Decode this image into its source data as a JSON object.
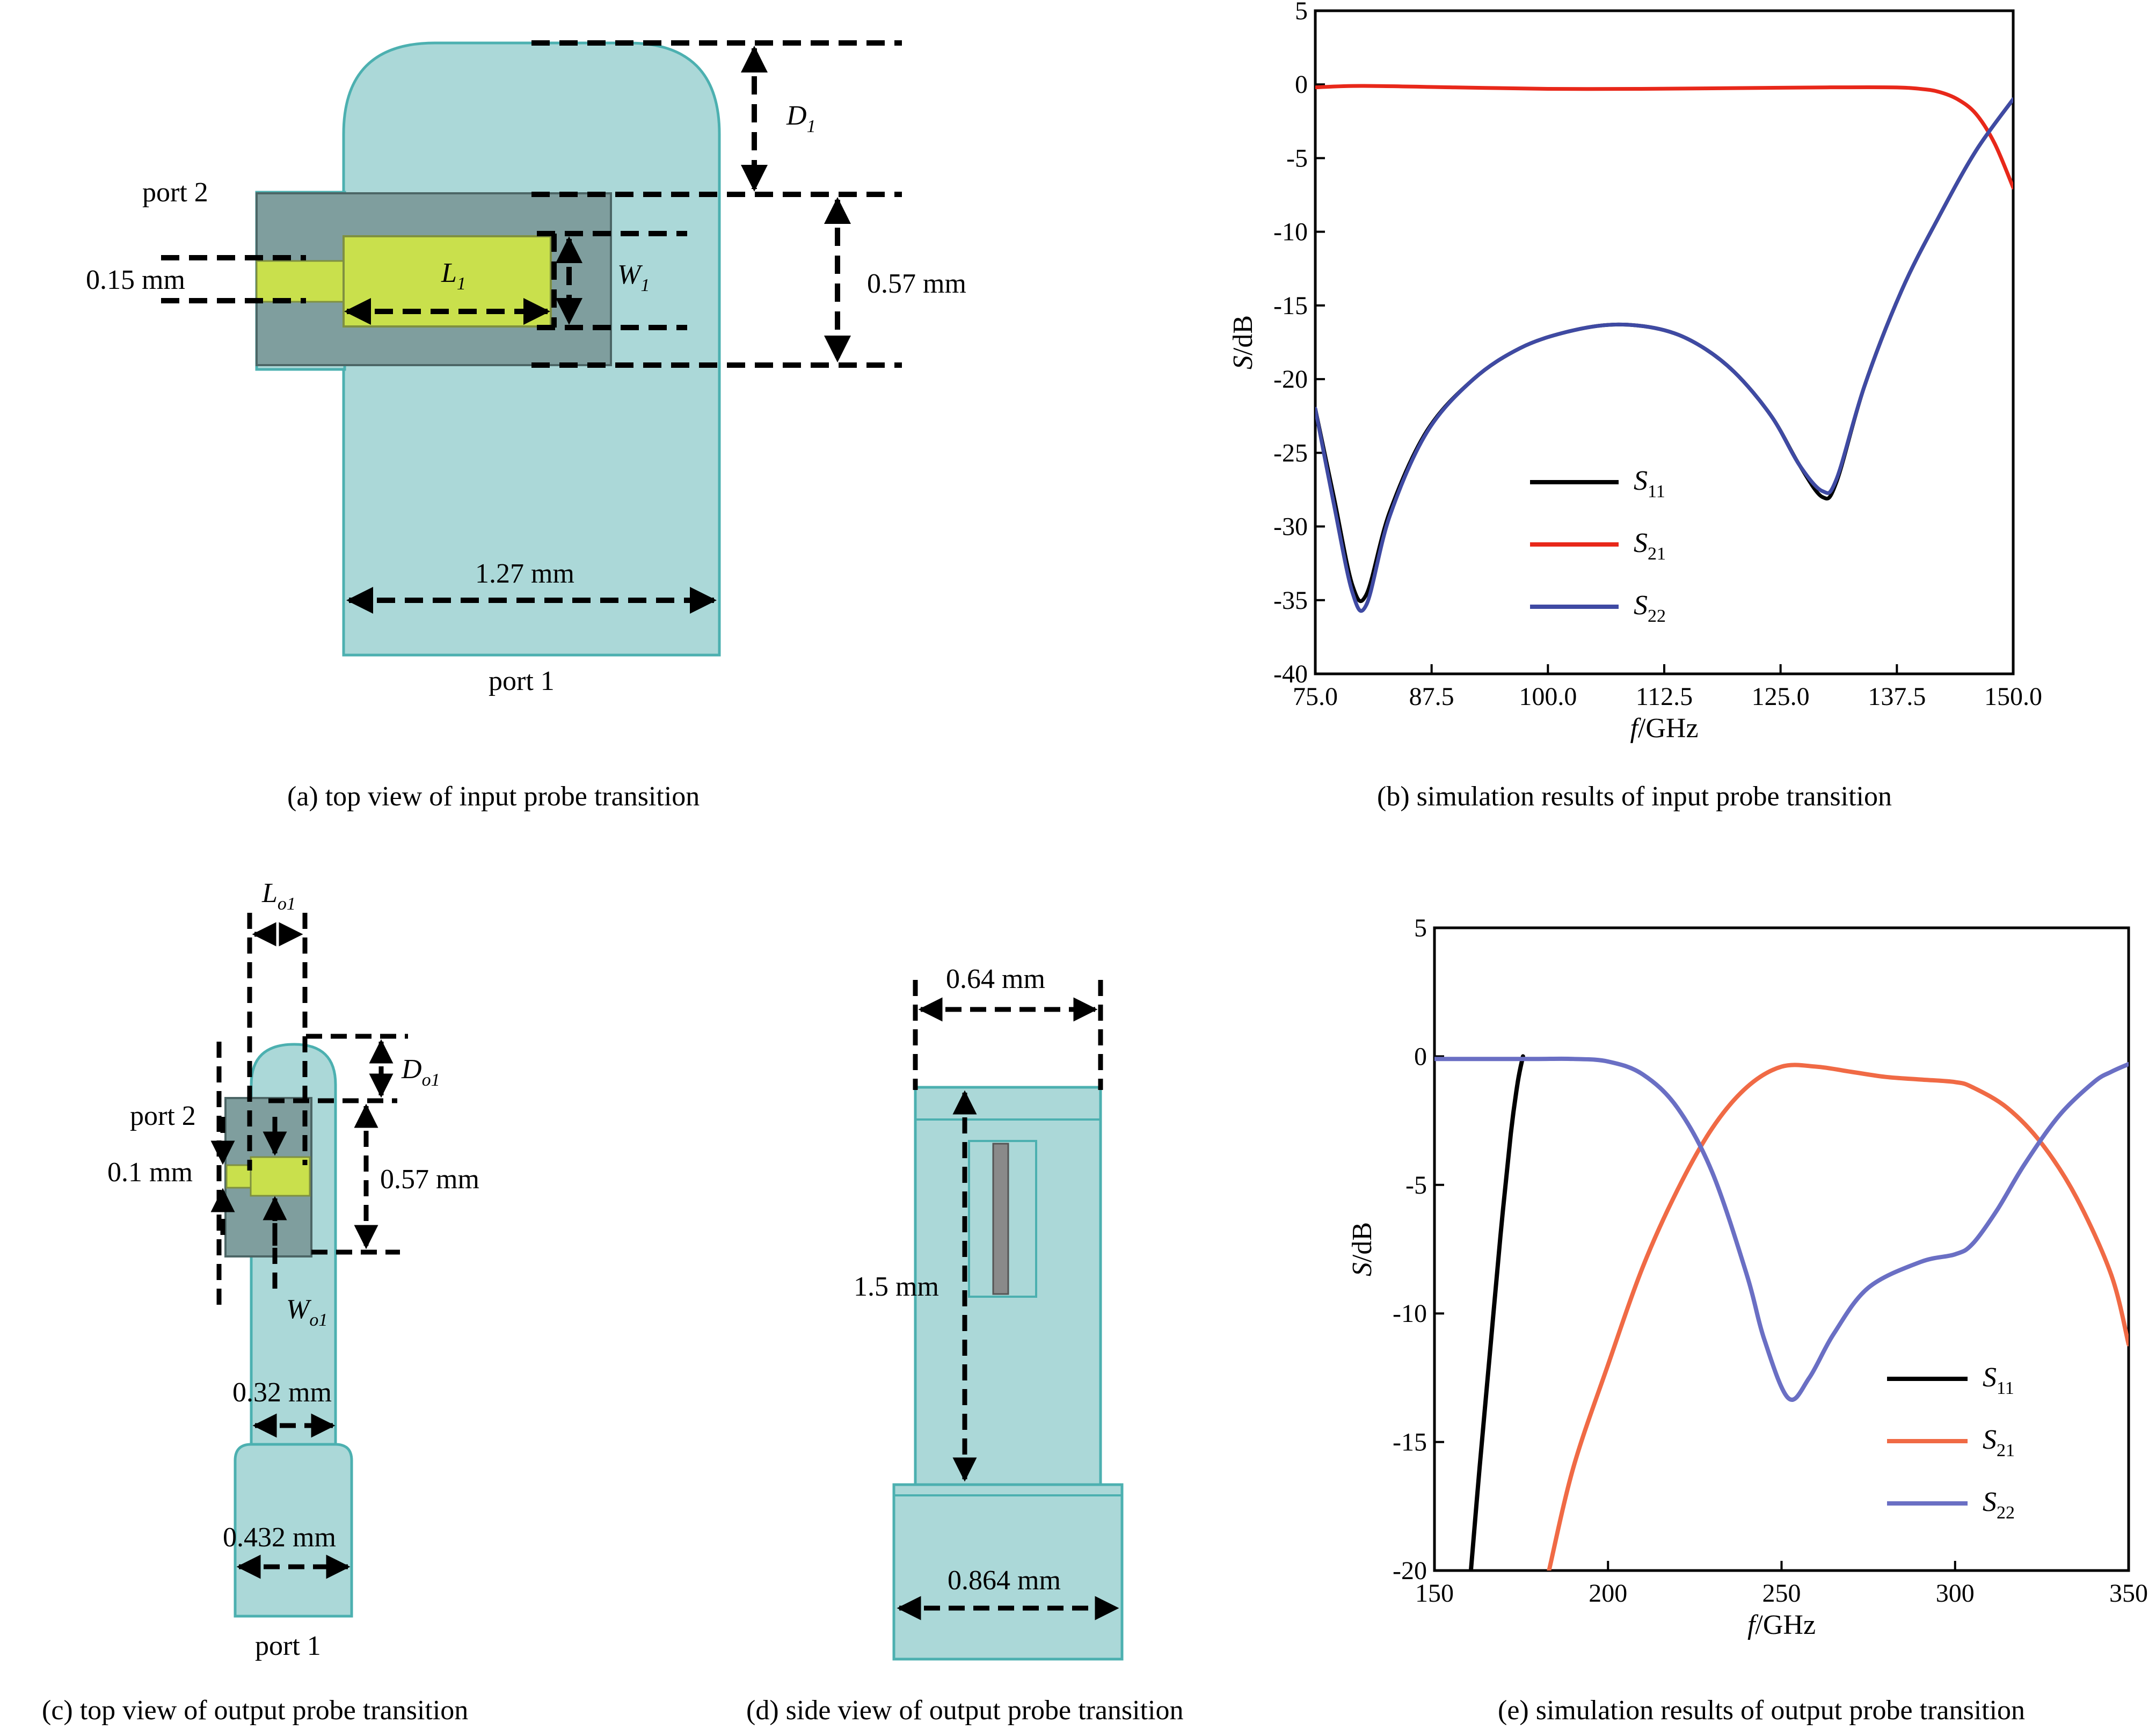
{
  "panels": {
    "a": {
      "caption": "(a)  top view of input probe transition",
      "port2": "port 2",
      "port1": "port 1",
      "dim_probe": "0.15 mm",
      "dim_height": "0.57 mm",
      "dim_width": "1.27 mm",
      "sym_D": "D",
      "sym_D_sub": "1",
      "sym_L": "L",
      "sym_L_sub": "1",
      "sym_W": "W",
      "sym_W_sub": "1"
    },
    "b": {
      "caption": "(b)  simulation results of input probe transition"
    },
    "c": {
      "caption": "(c) top view of output probe transition",
      "port2": "port 2",
      "port1": "port 1",
      "dim_probe": "0.1 mm",
      "dim_height": "0.57 mm",
      "dim_w1": "0.32 mm",
      "dim_w2": "0.432 mm",
      "sym_L": "L",
      "sym_L_sub": "o1",
      "sym_D": "D",
      "sym_D_sub": "o1",
      "sym_W": "W",
      "sym_W_sub": "o1"
    },
    "d": {
      "caption": "(d) side view of output probe transition",
      "dim_top": "0.64 mm",
      "dim_len": "1.5 mm",
      "dim_bottom": "0.864 mm"
    },
    "e": {
      "caption": "(e) simulation results of output probe transition"
    }
  },
  "colors": {
    "dielectric": "#abd8d8",
    "dielectric_edge": "#4cb0b0",
    "substrate": "#7f9e9e",
    "probe": "#c9e04c",
    "s11": "#000000",
    "s21_b": "#e8281a",
    "s21_e": "#f06a45",
    "s22": "#3f4aa3",
    "s22_e": "#6a6fc4"
  },
  "chart_data": [
    {
      "type": "line",
      "xlabel": "f/GHz",
      "ylabel": "S/dB",
      "xlim": [
        75.0,
        150.0
      ],
      "ylim": [
        -40,
        5
      ],
      "xticks": [
        "75.0",
        "87.5",
        "100.0",
        "112.5",
        "125.0",
        "137.5",
        "150.0"
      ],
      "yticks": [
        "5",
        "0",
        "-5",
        "-10",
        "-15",
        "-20",
        "-25",
        "-30",
        "-35",
        "-40"
      ],
      "legend_position": "lower-left",
      "series": [
        {
          "name": "S11",
          "label": "S",
          "label_sub": "11",
          "color": "#000000",
          "x": [
            75,
            77,
            79,
            80.5,
            83,
            87,
            92,
            97,
            102,
            107,
            112,
            116,
            120,
            124,
            127,
            129.5,
            131,
            134,
            138,
            142,
            146,
            150
          ],
          "y": [
            -22,
            -28,
            -34,
            -34.6,
            -29,
            -23.5,
            -20,
            -17.9,
            -16.8,
            -16.3,
            -16.6,
            -17.6,
            -19.5,
            -22.5,
            -25.8,
            -28,
            -27,
            -20.5,
            -14,
            -9,
            -4.5,
            -1
          ]
        },
        {
          "name": "S21",
          "label": "S",
          "label_sub": "21",
          "color": "#e8281a",
          "x": [
            75,
            80,
            90,
            100,
            110,
            120,
            130,
            137,
            140,
            142,
            144,
            146,
            148,
            150
          ],
          "y": [
            -0.2,
            -0.1,
            -0.2,
            -0.3,
            -0.3,
            -0.25,
            -0.2,
            -0.2,
            -0.3,
            -0.5,
            -1.0,
            -2.0,
            -4.0,
            -7.0
          ]
        },
        {
          "name": "S22",
          "label": "S",
          "label_sub": "22",
          "color": "#3f4aa3",
          "x": [
            75,
            77,
            79,
            80.5,
            83,
            87,
            92,
            97,
            102,
            107,
            112,
            116,
            120,
            124,
            127,
            129.5,
            131,
            134,
            138,
            142,
            146,
            150
          ],
          "y": [
            -22,
            -28.5,
            -34.5,
            -35.3,
            -29.3,
            -23.6,
            -20,
            -17.9,
            -16.8,
            -16.3,
            -16.6,
            -17.6,
            -19.5,
            -22.5,
            -25.8,
            -27.6,
            -26.8,
            -20.5,
            -14,
            -9,
            -4.5,
            -1
          ]
        }
      ]
    },
    {
      "type": "line",
      "xlabel": "f/GHz",
      "ylabel": "S/dB",
      "xlim": [
        150,
        350
      ],
      "ylim": [
        -20,
        5
      ],
      "xticks": [
        "150",
        "200",
        "250",
        "300",
        "350"
      ],
      "yticks": [
        "5",
        "0",
        "-5",
        "-10",
        "-15",
        "-20"
      ],
      "legend_position": "lower-right",
      "series": [
        {
          "name": "S11",
          "label": "S",
          "label_sub": "11",
          "color": "#000000",
          "x": [
            160.5,
            163,
            166,
            169,
            172,
            174,
            175.5
          ],
          "y": [
            -20,
            -16,
            -11.5,
            -7,
            -3,
            -1,
            0
          ]
        },
        {
          "name": "S21",
          "label": "S",
          "label_sub": "21",
          "color": "#f06a45",
          "x": [
            183,
            190,
            200,
            210,
            220,
            230,
            240,
            250,
            260,
            270,
            280,
            290,
            300,
            305,
            315,
            325,
            335,
            345,
            350
          ],
          "y": [
            -20,
            -16,
            -12,
            -8.2,
            -5.2,
            -2.8,
            -1.2,
            -0.4,
            -0.4,
            -0.6,
            -0.8,
            -0.9,
            -1.0,
            -1.2,
            -2.0,
            -3.4,
            -5.5,
            -8.5,
            -11.2
          ]
        },
        {
          "name": "S22",
          "label": "S",
          "label_sub": "22",
          "color": "#6a6fc4",
          "x": [
            150,
            160,
            170,
            180,
            190,
            200,
            210,
            220,
            230,
            240,
            245,
            252,
            258,
            265,
            275,
            290,
            300,
            305,
            312,
            320,
            330,
            340,
            345,
            350
          ],
          "y": [
            -0.1,
            -0.1,
            -0.1,
            -0.1,
            -0.1,
            -0.2,
            -0.7,
            -2.0,
            -4.5,
            -8.5,
            -11,
            -13.3,
            -12.5,
            -10.8,
            -9.0,
            -8.0,
            -7.7,
            -7.3,
            -6.0,
            -4.2,
            -2.3,
            -1.0,
            -0.6,
            -0.3
          ]
        }
      ]
    }
  ]
}
